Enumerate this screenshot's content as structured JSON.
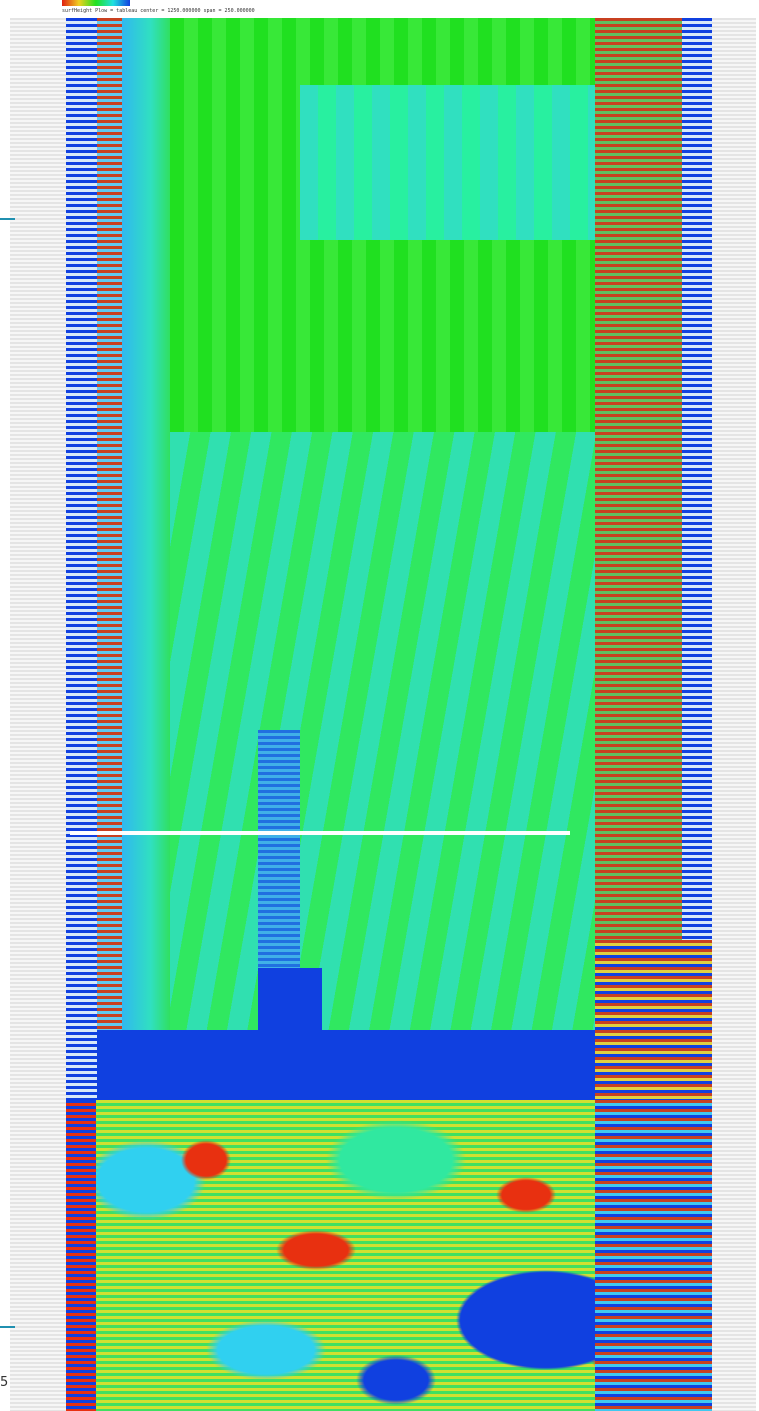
{
  "header": {
    "caption": "surfHeight  Plow = tableau center = 1250.000000 span = 250.000000"
  },
  "side_label": "5"
}
